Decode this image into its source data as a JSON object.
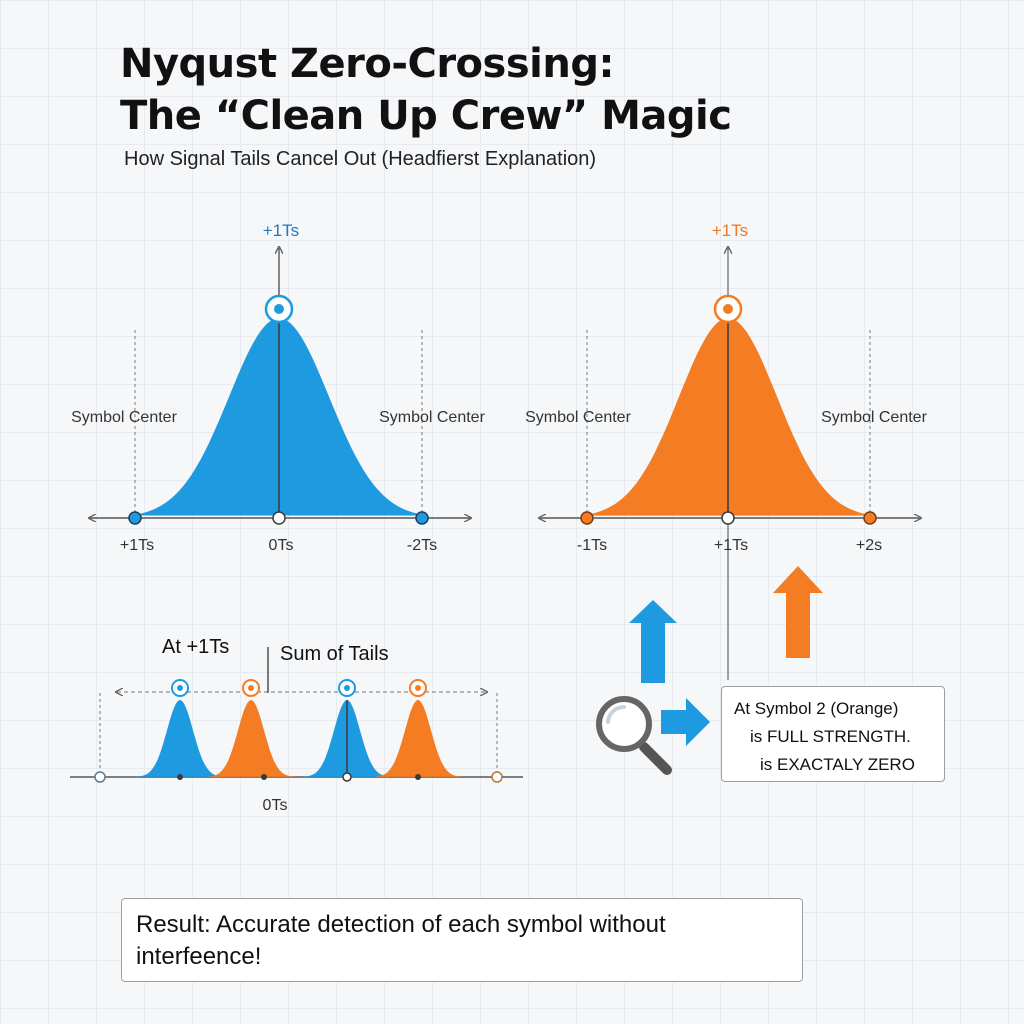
{
  "header": {
    "title_line1": "Nyqust Zero-Crossing:",
    "title_line2": "The “Clean Up Crew” Magic",
    "subtitle": "How Signal Tails Cancel Out (Headfierst Explanation)"
  },
  "colors": {
    "blue": "#1e9be0",
    "orange": "#f47c22",
    "axis": "#555555",
    "label_blue": "#2479c2",
    "label_orange": "#f07a22"
  },
  "left_panel": {
    "peak_label": "+1Ts",
    "left_label": "Symbol Center",
    "right_label": "Symbol Center",
    "ticks": [
      "+1Ts",
      "0Ts",
      "-2Ts"
    ]
  },
  "right_panel": {
    "peak_label": "+1Ts",
    "left_label": "Symbol Center",
    "right_label": "Symbol Center",
    "ticks": [
      "-1Ts",
      "+1Ts",
      "+2s"
    ]
  },
  "bottom_panel": {
    "label_at": "At +1Ts",
    "label_sum": "Sum of Tails",
    "tick": "0Ts"
  },
  "icons": {
    "magnifier": "magnifier-icon",
    "arrow_up_blue": "arrow-up-icon",
    "arrow_up_orange": "arrow-up-icon",
    "arrow_right_blue": "arrow-right-icon"
  },
  "callout": {
    "line1": "At Symbol 2 (Orange)",
    "line2": "is FULL STRENGTH.",
    "line3": "is EXACTALY ZERO"
  },
  "result": {
    "text": "Result: Accurate detection of each symbol without interfeence!"
  }
}
